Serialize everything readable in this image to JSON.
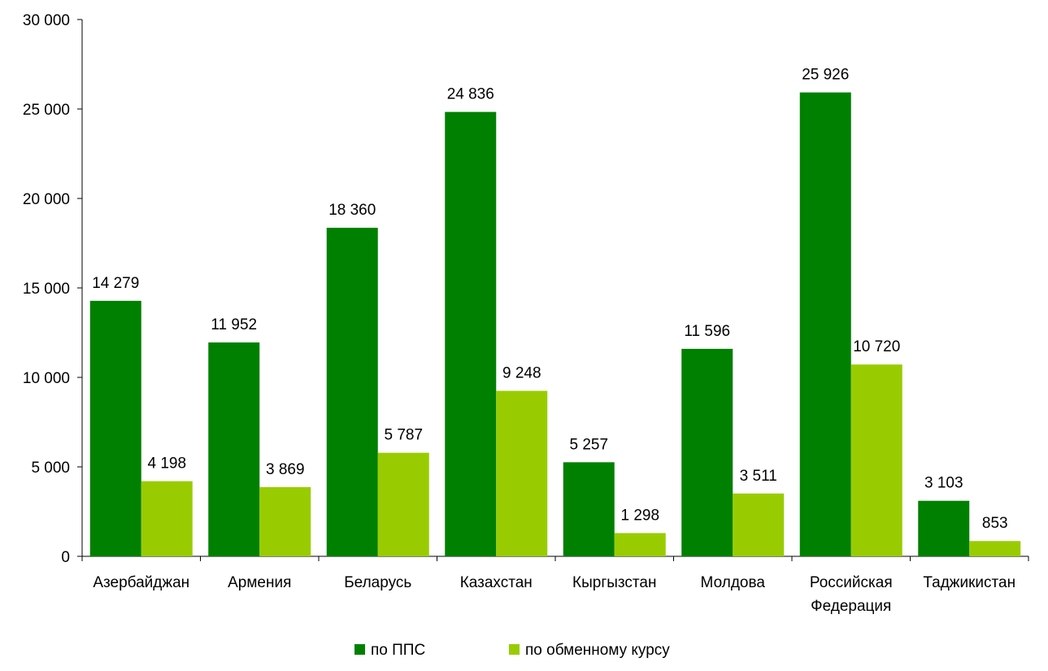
{
  "chart_data": {
    "type": "bar",
    "categories": [
      [
        "Азербайджан"
      ],
      [
        "Армения"
      ],
      [
        "Беларусь"
      ],
      [
        "Казахстан"
      ],
      [
        "Кыргызстан"
      ],
      [
        "Молдова"
      ],
      [
        "Российская",
        "Федерация"
      ],
      [
        "Таджикистан"
      ]
    ],
    "series": [
      {
        "name": "по ППС",
        "color": "#008000",
        "values": [
          14279,
          11952,
          18360,
          24836,
          5257,
          11596,
          25926,
          3103
        ],
        "labels": [
          "14 279",
          "11 952",
          "18 360",
          "24 836",
          "5 257",
          "11 596",
          "25 926",
          "3 103"
        ]
      },
      {
        "name": "по обменному курсу",
        "color": "#99CC00",
        "values": [
          4198,
          3869,
          5787,
          9248,
          1298,
          3511,
          10720,
          853
        ],
        "labels": [
          "4 198",
          "3 869",
          "5 787",
          "9 248",
          "1 298",
          "3 511",
          "10 720",
          "853"
        ]
      }
    ],
    "ylim": [
      0,
      30000
    ],
    "yticks": [
      0,
      5000,
      10000,
      15000,
      20000,
      25000,
      30000
    ],
    "ytick_labels": [
      "0",
      "5 000",
      "10 000",
      "15 000",
      "20 000",
      "25 000",
      "30 000"
    ],
    "grid": false,
    "legend_position": "bottom"
  }
}
